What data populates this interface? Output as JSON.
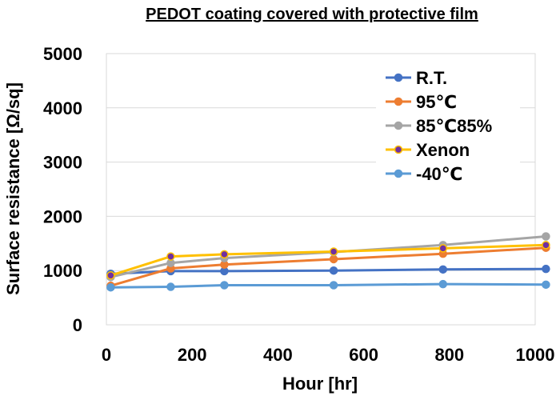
{
  "chart_data": {
    "type": "line",
    "title": "PEDOT coating covered with protective film",
    "xlabel": "Hour [hr]",
    "ylabel": "Surface resistance [Ω/sq]",
    "xlim": [
      0,
      1000
    ],
    "ylim": [
      0,
      5000
    ],
    "xticks": [
      0,
      200,
      400,
      600,
      800,
      1000
    ],
    "yticks": [
      0,
      1000,
      2000,
      3000,
      4000,
      5000
    ],
    "grid": "horizontal",
    "legend_position": "top-right",
    "series": [
      {
        "name": "R.T.",
        "color": "#4472C4",
        "marker_fill": "#4472C4",
        "x": [
          10,
          150,
          275,
          530,
          785,
          1025
        ],
        "y": [
          940,
          990,
          990,
          1000,
          1020,
          1030
        ]
      },
      {
        "name": "95℃",
        "color": "#ED7D31",
        "marker_fill": "#ED7D31",
        "x": [
          10,
          150,
          275,
          530,
          785,
          1025
        ],
        "y": [
          720,
          1040,
          1110,
          1210,
          1310,
          1420
        ]
      },
      {
        "name": "85℃85%",
        "color": "#A5A5A5",
        "marker_fill": "#A5A5A5",
        "x": [
          10,
          150,
          275,
          530,
          785,
          1025
        ],
        "y": [
          880,
          1140,
          1230,
          1340,
          1470,
          1630
        ]
      },
      {
        "name": "Xenon",
        "color": "#FFC000",
        "marker_fill": "#7030A0",
        "x": [
          10,
          150,
          275,
          530,
          785,
          1025
        ],
        "y": [
          910,
          1260,
          1300,
          1350,
          1410,
          1470
        ]
      },
      {
        "name": "-40℃",
        "color": "#5B9BD5",
        "marker_fill": "#5B9BD5",
        "x": [
          10,
          150,
          275,
          530,
          785,
          1025
        ],
        "y": [
          690,
          700,
          730,
          730,
          750,
          740
        ]
      }
    ]
  }
}
